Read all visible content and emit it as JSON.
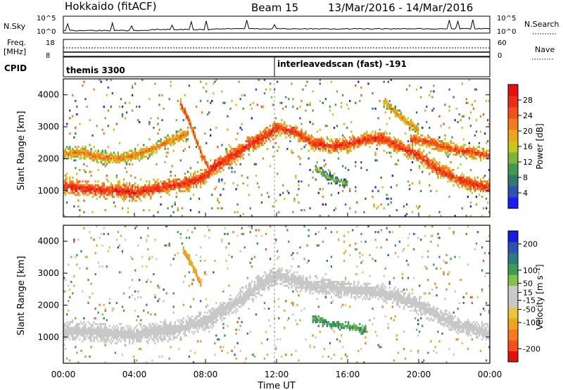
{
  "header": {
    "site": "Hokkaido (fitACF)",
    "beam": "Beam 15",
    "date_range": "13/Mar/2016 - 14/Mar/2016"
  },
  "strips": {
    "nsky_label": "N.Sky",
    "nsky_ticks": [
      "10^5",
      "10^0"
    ],
    "nsearch_label": "N.Search",
    "nsearch_ticks": [
      "10^5",
      "10^0"
    ],
    "freq_label_1": "Freq.",
    "freq_label_2": "[MHz]",
    "freq_ticks": [
      "18",
      "8"
    ],
    "nave_label": "Nave",
    "nave_ticks": [
      "60",
      "0"
    ],
    "cpid_label": "CPID",
    "cpid_segments": [
      {
        "name": "themis 3300",
        "start_hour": 0
      },
      {
        "name": "interleavedscan (fast) -191",
        "start_hour": 11.95
      }
    ]
  },
  "chart_data": [
    {
      "type": "heatmap",
      "panel": "power",
      "ylabel": "Slant Range [km]",
      "ylim": [
        180,
        4500
      ],
      "yticks": [
        1000,
        2000,
        3000,
        4000
      ],
      "xlim": [
        0,
        24
      ],
      "colorbar": {
        "label": "Power [dB]",
        "ticks": [
          "4",
          "8",
          "12",
          "16",
          "20",
          "24",
          "28"
        ],
        "range": [
          0,
          32
        ],
        "colors": [
          "#1a1aff",
          "#2c52b5",
          "#2f7a6c",
          "#3f9a52",
          "#7fb23a",
          "#c9c81a",
          "#f0a41e",
          "#f47a1a",
          "#f3501a",
          "#ef2a18",
          "#e60f10"
        ]
      },
      "bands": [
        {
          "x": [
            0,
            1.5,
            3,
            4,
            5,
            6,
            7,
            7.8,
            8.5,
            9.5,
            10.5,
            11.5,
            12
          ],
          "y": [
            1150,
            1050,
            1000,
            950,
            1050,
            1150,
            1250,
            1400,
            1750,
            2100,
            2450,
            2750,
            2950
          ],
          "thick": 260,
          "level": 0.92
        },
        {
          "x": [
            0,
            1,
            2,
            3,
            4,
            5,
            6,
            7
          ],
          "y": [
            2150,
            2200,
            2050,
            2000,
            2100,
            2300,
            2550,
            2800
          ],
          "thick": 200,
          "level": 0.72
        },
        {
          "x": [
            6.6,
            7,
            7.4,
            7.8,
            8.2
          ],
          "y": [
            3700,
            3300,
            2700,
            2100,
            1700
          ],
          "thick": 150,
          "level": 0.88
        },
        {
          "x": [
            12,
            13,
            14,
            15,
            16,
            17,
            18,
            19,
            20,
            21,
            22,
            23,
            24
          ],
          "y": [
            3000,
            2850,
            2500,
            2400,
            2450,
            2600,
            2650,
            2350,
            2100,
            1700,
            1400,
            1200,
            1100
          ],
          "thick": 230,
          "level": 0.9
        },
        {
          "x": [
            19.5,
            20.5,
            21.5,
            22.5,
            23.5,
            24
          ],
          "y": [
            2600,
            2550,
            2350,
            2250,
            2150,
            2100
          ],
          "thick": 200,
          "level": 0.85
        },
        {
          "x": [
            18,
            19,
            20
          ],
          "y": [
            3800,
            3300,
            2900
          ],
          "thick": 160,
          "level": 0.7
        },
        {
          "x": [
            14.2,
            15,
            15.5,
            16
          ],
          "y": [
            1700,
            1400,
            1300,
            1200
          ],
          "thick": 120,
          "level": 0.45
        }
      ]
    },
    {
      "type": "heatmap",
      "panel": "velocity",
      "ylabel": "Slant Range [km]",
      "ylim": [
        180,
        4500
      ],
      "yticks": [
        1000,
        2000,
        3000,
        4000
      ],
      "xlim": [
        0,
        24
      ],
      "xlabel": "Time UT",
      "xticks": [
        "00:00",
        "04:00",
        "08:00",
        "12:00",
        "16:00",
        "20:00",
        "00:00"
      ],
      "colorbar": {
        "label": "Velocity [m s⁻¹]",
        "ticks": [
          "-200",
          "-100",
          "-50",
          "-15",
          "15",
          "50",
          "100",
          "200"
        ],
        "range": [
          -250,
          250
        ],
        "colors": [
          "#e60f10",
          "#f3501a",
          "#f47a1a",
          "#f0a41e",
          "#ecc43a",
          "#c8c8c8",
          "#c8c8c8",
          "#7dc447",
          "#3f9a52",
          "#2c7a82",
          "#2c52b5",
          "#1a1ae0"
        ]
      },
      "bands": [
        {
          "x": [
            0,
            2,
            4,
            6,
            8,
            10,
            11,
            12
          ],
          "y": [
            1200,
            1150,
            1100,
            1200,
            1500,
            2200,
            2600,
            2900
          ],
          "thick": 300,
          "level": 0.0
        },
        {
          "x": [
            12,
            14,
            16,
            18,
            20,
            22,
            24
          ],
          "y": [
            2950,
            2600,
            2500,
            2400,
            2000,
            1400,
            1150
          ],
          "thick": 260,
          "level": 0.0
        },
        {
          "x": [
            14,
            15,
            16,
            17
          ],
          "y": [
            1600,
            1400,
            1350,
            1200
          ],
          "thick": 130,
          "level": 0.45
        },
        {
          "x": [
            6.7,
            7.3,
            7.8
          ],
          "y": [
            3800,
            3200,
            2600
          ],
          "thick": 140,
          "level": -0.45
        }
      ]
    }
  ],
  "ticks": {
    "x_labels": [
      "00:00",
      "04:00",
      "08:00",
      "12:00",
      "16:00",
      "20:00",
      "00:00"
    ],
    "y_labels": [
      "1000",
      "2000",
      "3000",
      "4000"
    ]
  }
}
